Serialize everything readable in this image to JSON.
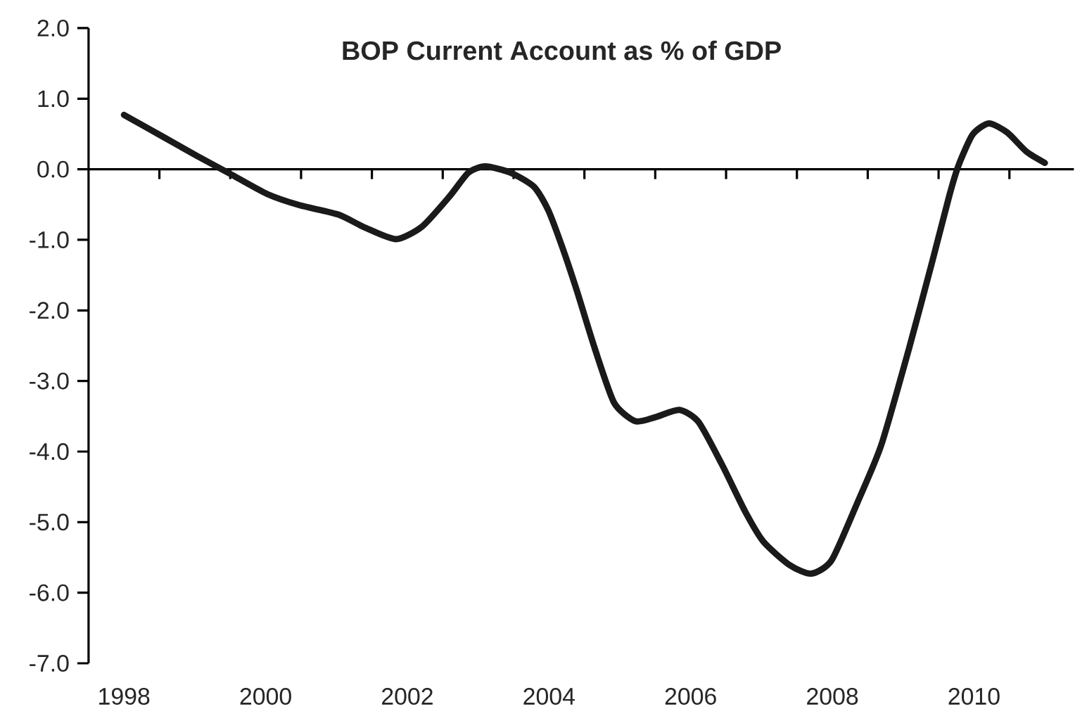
{
  "chart_data": {
    "type": "line",
    "title": "BOP Current Account as % of GDP",
    "color": "#1a1a1a",
    "line_style": "solid",
    "x": [
      1998.0,
      1998.57,
      1999.03,
      1999.49,
      2000.02,
      2000.48,
      2001.02,
      2001.41,
      2001.84,
      2002.21,
      2002.6,
      2002.86,
      2003.1,
      2003.46,
      2003.79,
      2003.99,
      2004.19,
      2004.39,
      2004.65,
      2004.92,
      2005.22,
      2005.51,
      2005.84,
      2006.11,
      2006.44,
      2006.77,
      2007.03,
      2007.4,
      2007.7,
      2007.99,
      2008.36,
      2008.69,
      2009.08,
      2009.41,
      2009.65,
      2009.78,
      2009.98,
      2010.21,
      2010.47,
      2010.74,
      2011.0
    ],
    "values": [
      0.77,
      0.45,
      0.19,
      -0.06,
      -0.35,
      -0.51,
      -0.64,
      -0.83,
      -0.99,
      -0.81,
      -0.38,
      -0.05,
      0.04,
      -0.05,
      -0.25,
      -0.58,
      -1.11,
      -1.71,
      -2.55,
      -3.31,
      -3.57,
      -3.51,
      -3.41,
      -3.58,
      -4.18,
      -4.85,
      -5.28,
      -5.61,
      -5.73,
      -5.54,
      -4.71,
      -3.91,
      -2.55,
      -1.31,
      -0.38,
      0.05,
      0.49,
      0.65,
      0.52,
      0.25,
      0.09
    ],
    "xlim": [
      1997.5,
      2011.41
    ],
    "ylim": [
      -7,
      2
    ],
    "xticks": [
      {
        "value": 1998,
        "label": "1998"
      },
      {
        "value": 1998.5,
        "label": null
      },
      {
        "value": 1999.5,
        "label": null
      },
      {
        "value": 2000,
        "label": "2000"
      },
      {
        "value": 2000.5,
        "label": null
      },
      {
        "value": 2001.5,
        "label": null
      },
      {
        "value": 2002,
        "label": "2002"
      },
      {
        "value": 2002.5,
        "label": null
      },
      {
        "value": 2003.5,
        "label": null
      },
      {
        "value": 2004,
        "label": "2004"
      },
      {
        "value": 2004.5,
        "label": null
      },
      {
        "value": 2005.5,
        "label": null
      },
      {
        "value": 2006,
        "label": "2006"
      },
      {
        "value": 2006.5,
        "label": null
      },
      {
        "value": 2007.5,
        "label": null
      },
      {
        "value": 2008,
        "label": "2008"
      },
      {
        "value": 2008.5,
        "label": null
      },
      {
        "value": 2009.5,
        "label": null
      },
      {
        "value": 2010,
        "label": "2010"
      },
      {
        "value": 2010.5,
        "label": null
      }
    ],
    "yticks": [
      {
        "value": 2,
        "label": "2.0"
      },
      {
        "value": 1,
        "label": "1.0"
      },
      {
        "value": 0,
        "label": "0.0"
      },
      {
        "value": -1,
        "label": "-1.0"
      },
      {
        "value": -2,
        "label": "-2.0"
      },
      {
        "value": -3,
        "label": "-3.0"
      },
      {
        "value": -4,
        "label": "-4.0"
      },
      {
        "value": -5,
        "label": "-5.0"
      },
      {
        "value": -6,
        "label": "-6.0"
      },
      {
        "value": -7,
        "label": "-7.0"
      }
    ],
    "ref_lines": [
      {
        "axis": "y",
        "value": 0
      }
    ]
  }
}
